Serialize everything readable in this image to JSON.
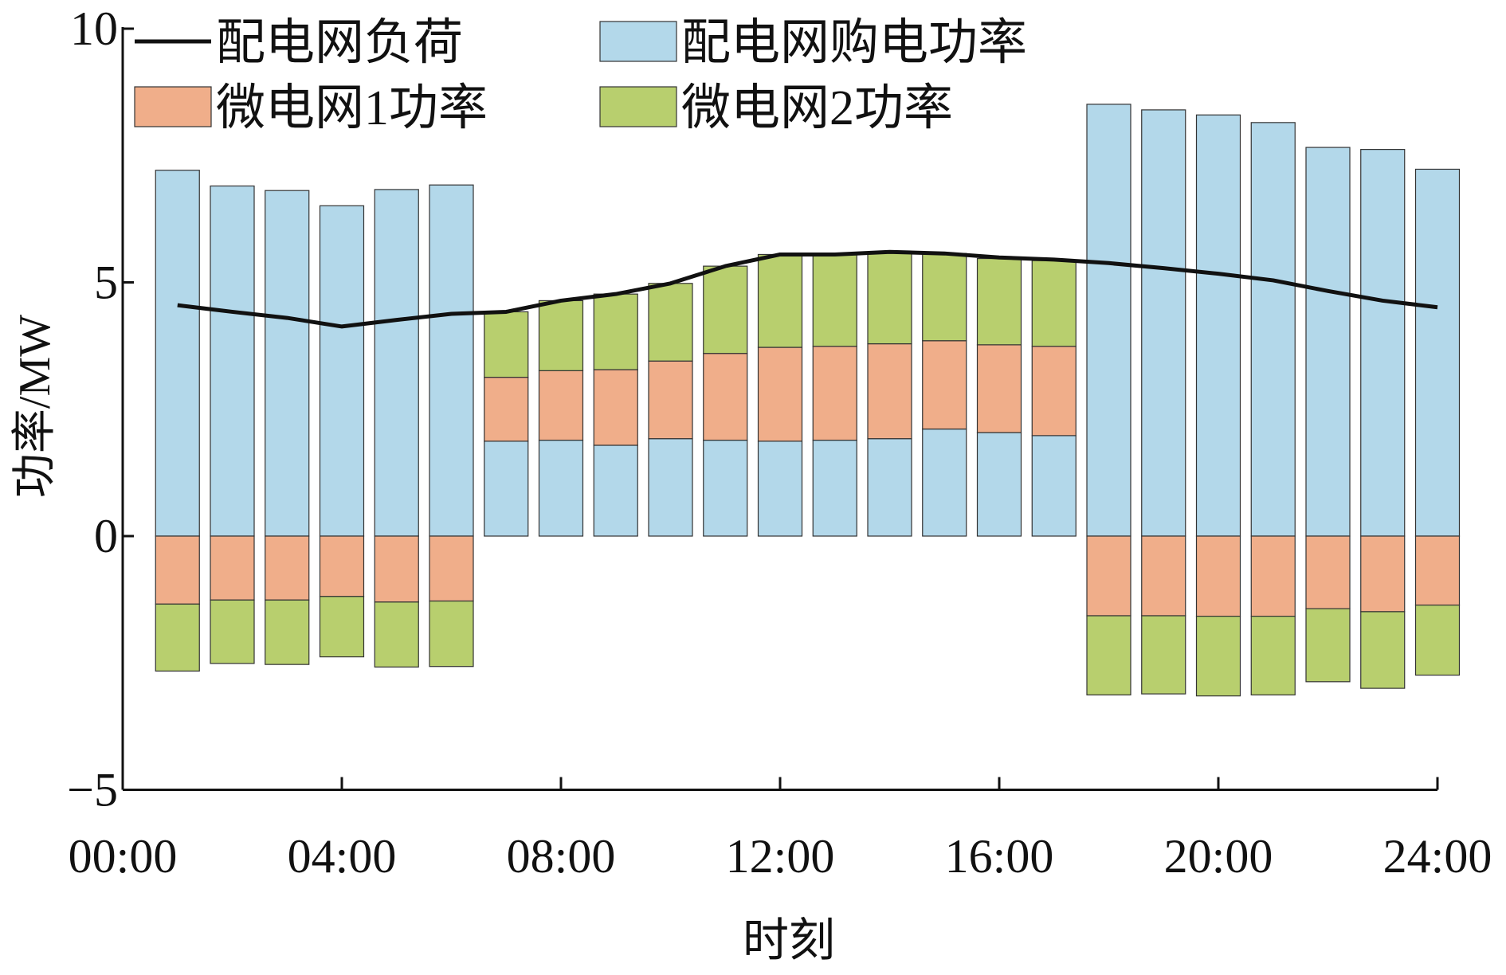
{
  "chart_data": {
    "type": "bar",
    "stacked": true,
    "xlabel": "时刻",
    "ylabel": "功率/MW",
    "ylim": [
      -5,
      10
    ],
    "yticks": [
      10,
      5,
      0,
      -5
    ],
    "ytick_labels": [
      "10",
      "5",
      "0",
      "−5"
    ],
    "xlim": [
      0,
      24
    ],
    "xticks": [
      0,
      4,
      8,
      12,
      16,
      20,
      24
    ],
    "xtick_labels": [
      "00:00",
      "04:00",
      "08:00",
      "12:00",
      "16:00",
      "20:00",
      "24:00"
    ],
    "legend_position": "top-left",
    "x": [
      1,
      2,
      3,
      4,
      5,
      6,
      7,
      8,
      9,
      10,
      11,
      12,
      13,
      14,
      15,
      16,
      17,
      18,
      19,
      20,
      21,
      22,
      23,
      24
    ],
    "series": [
      {
        "name": "配电网购电功率",
        "kind": "bar",
        "color": "#b3d8ea",
        "values": [
          7.21,
          6.9,
          6.81,
          6.51,
          6.83,
          6.92,
          1.87,
          1.89,
          1.79,
          1.92,
          1.89,
          1.87,
          1.89,
          1.92,
          2.11,
          2.04,
          1.98,
          8.51,
          8.4,
          8.3,
          8.15,
          7.66,
          7.62,
          7.23
        ]
      },
      {
        "name": "微电网1功率",
        "kind": "bar",
        "color": "#f0ae8a",
        "values": [
          -1.34,
          -1.26,
          -1.26,
          -1.19,
          -1.3,
          -1.28,
          1.26,
          1.37,
          1.49,
          1.53,
          1.71,
          1.85,
          1.85,
          1.87,
          1.74,
          1.73,
          1.76,
          -1.57,
          -1.57,
          -1.58,
          -1.58,
          -1.43,
          -1.49,
          -1.36
        ]
      },
      {
        "name": "微电网2功率",
        "kind": "bar",
        "color": "#b8cf6e",
        "values": [
          -1.32,
          -1.25,
          -1.27,
          -1.19,
          -1.28,
          -1.29,
          1.29,
          1.38,
          1.49,
          1.53,
          1.72,
          1.83,
          1.81,
          1.79,
          1.72,
          1.7,
          1.69,
          -1.56,
          -1.54,
          -1.57,
          -1.55,
          -1.44,
          -1.51,
          -1.38
        ]
      },
      {
        "name": "配电网负荷",
        "kind": "line",
        "color": "#111111",
        "values": [
          4.55,
          4.42,
          4.3,
          4.13,
          4.26,
          4.38,
          4.42,
          4.64,
          4.77,
          4.98,
          5.32,
          5.55,
          5.55,
          5.6,
          5.57,
          5.49,
          5.45,
          5.38,
          5.28,
          5.17,
          5.04,
          4.83,
          4.64,
          4.51
        ]
      }
    ]
  }
}
